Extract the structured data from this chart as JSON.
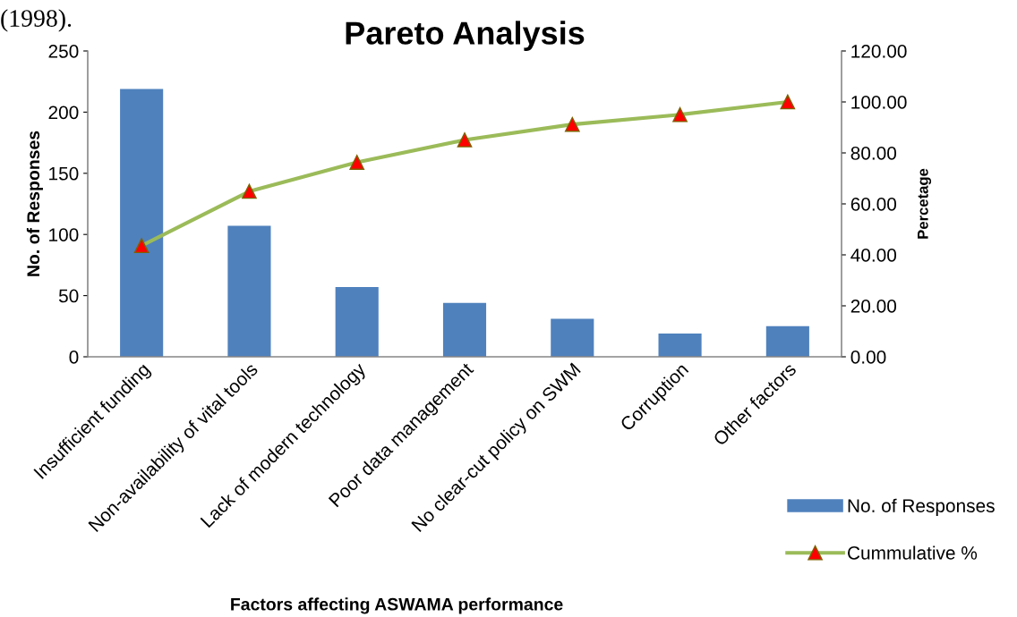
{
  "chart_data": {
    "type": "bar",
    "title": "Pareto Analysis",
    "xlabel": "Factors affecting ASWAMA performance",
    "ylabel": "No. of Responses",
    "y2label": "Percetage",
    "categories": [
      "Insufficient funding",
      "Non-availability of vital tools",
      "Lack of modern technology",
      "Poor data management",
      "No clear-cut policy on SWM",
      "Corruption",
      "Other factors"
    ],
    "series": [
      {
        "name": "No. of Responses",
        "color": "#4f81bd",
        "values": [
          219,
          107,
          57,
          44,
          31,
          19,
          25
        ]
      },
      {
        "name": "Cummulative %",
        "type": "line",
        "axis": "y2",
        "color": "#9bbb59",
        "marker": "triangle",
        "values": [
          43.6,
          64.9,
          76.3,
          85.1,
          91.2,
          95.0,
          100.0
        ]
      }
    ],
    "ylim": [
      0,
      250
    ],
    "yticks": [
      0,
      50,
      100,
      150,
      200,
      250
    ],
    "y2lim": [
      0,
      120
    ],
    "y2ticks": [
      {
        "value": 0,
        "label": "0.00"
      },
      {
        "value": 20,
        "label": "20.00"
      },
      {
        "value": 40,
        "label": "40.00"
      },
      {
        "value": 60,
        "label": "60.00"
      },
      {
        "value": 80,
        "label": "80.00"
      },
      {
        "value": 100,
        "label": "100.00"
      },
      {
        "value": 120,
        "label": "120.00"
      }
    ],
    "grid": false,
    "legend": "bottom right",
    "annotations": [
      "(1998)."
    ]
  }
}
